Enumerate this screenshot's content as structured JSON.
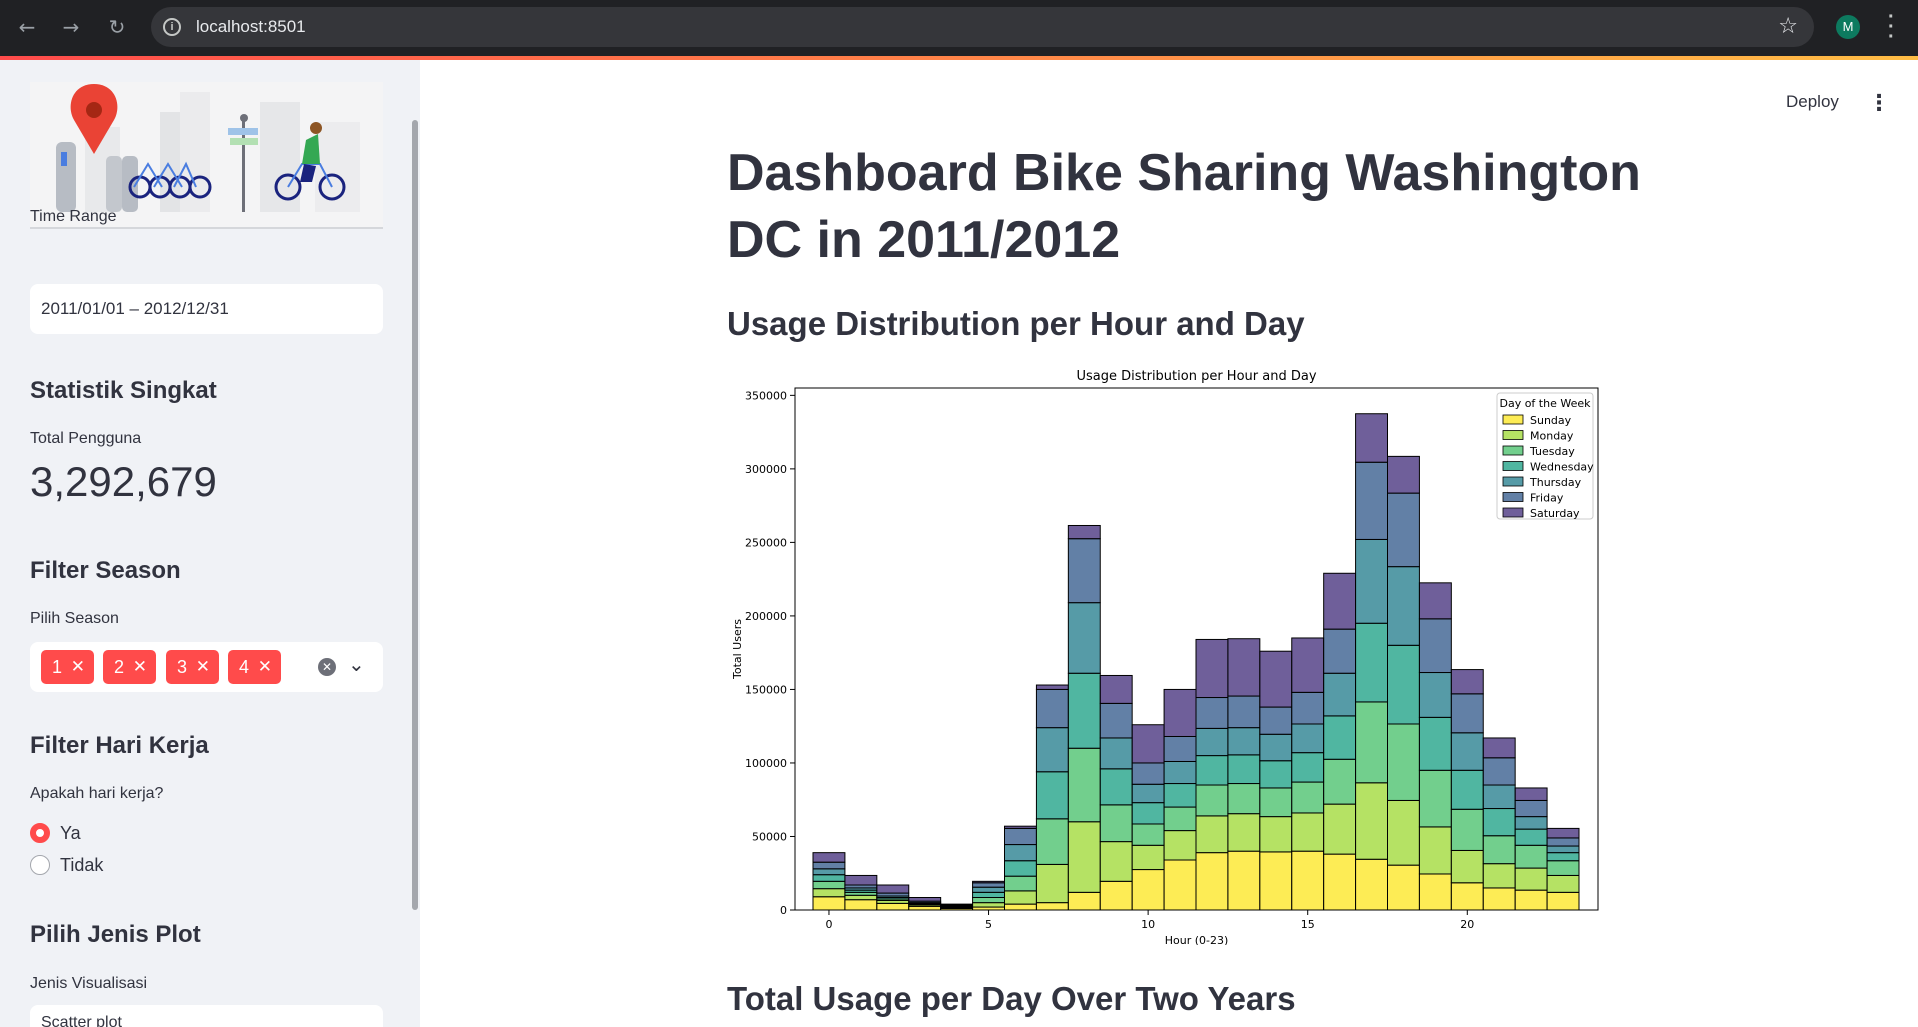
{
  "browser": {
    "url": "localhost:8501",
    "profile_initial": "M"
  },
  "sidebar": {
    "time_range_label": "Time Range",
    "time_range_value": "2011/01/01 – 2012/12/31",
    "stats_header": "Statistik Singkat",
    "total_users_label": "Total Pengguna",
    "total_users_value": "3,292,679",
    "season_header": "Filter Season",
    "season_label": "Pilih Season",
    "season_chips": [
      "1",
      "2",
      "3",
      "4"
    ],
    "workday_header": "Filter Hari Kerja",
    "workday_label": "Apakah hari kerja?",
    "workday_options": [
      "Ya",
      "Tidak"
    ],
    "workday_selected": "Ya",
    "plot_header": "Pilih Jenis Plot",
    "plot_label": "Jenis Visualisasi",
    "plot_value": "Scatter plot"
  },
  "main": {
    "deploy_label": "Deploy",
    "title": "Dashboard Bike Sharing Washington DC in 2011/2012",
    "section1": "Usage Distribution per Hour and Day",
    "section2": "Total Usage per Day Over Two Years"
  },
  "chart_data": {
    "type": "bar",
    "stacked": true,
    "title": "Usage Distribution per Hour and Day",
    "xlabel": "Hour (0-23)",
    "ylabel": "Total Users",
    "xticks": [
      0,
      5,
      10,
      15,
      20
    ],
    "yticks": [
      0,
      50000,
      100000,
      150000,
      200000,
      250000,
      300000,
      350000
    ],
    "ylim": [
      0,
      355000
    ],
    "legend_title": "Day of the Week",
    "legend_position": "top-right",
    "categories": [
      0,
      1,
      2,
      3,
      4,
      5,
      6,
      7,
      8,
      9,
      10,
      11,
      12,
      13,
      14,
      15,
      16,
      17,
      18,
      19,
      20,
      21,
      22,
      23
    ],
    "series": [
      {
        "name": "Sunday",
        "color": "#fde725",
        "values": [
          9000,
          7000,
          4500,
          2500,
          1000,
          2000,
          4000,
          5000,
          12000,
          19500,
          27500,
          34000,
          39000,
          40000,
          39500,
          40000,
          38000,
          34500,
          30500,
          24500,
          18500,
          15000,
          13500,
          12000
        ]
      },
      {
        "name": "Monday",
        "color": "#a0da39",
        "values": [
          5500,
          3000,
          2000,
          1000,
          500,
          3000,
          9000,
          26000,
          48000,
          27000,
          16500,
          20000,
          25000,
          25500,
          24000,
          26000,
          34000,
          52000,
          44000,
          32000,
          22000,
          16500,
          15000,
          11500
        ]
      },
      {
        "name": "Tuesday",
        "color": "#4ac16d",
        "values": [
          5000,
          2000,
          1000,
          500,
          500,
          3500,
          10000,
          31000,
          50000,
          25000,
          14500,
          16000,
          21000,
          20500,
          19500,
          21000,
          30500,
          55000,
          52000,
          38500,
          28000,
          19000,
          15500,
          10000
        ]
      },
      {
        "name": "Wednesday",
        "color": "#1fa187",
        "values": [
          4500,
          1500,
          1000,
          500,
          500,
          3500,
          10500,
          32000,
          51000,
          24500,
          14500,
          16000,
          20000,
          19500,
          18500,
          20000,
          29500,
          53500,
          53500,
          36000,
          26500,
          18500,
          11000,
          5500
        ]
      },
      {
        "name": "Thursday",
        "color": "#277f8e",
        "values": [
          4000,
          1500,
          1000,
          500,
          500,
          3500,
          11000,
          30000,
          48000,
          21000,
          12500,
          15000,
          18500,
          18500,
          18000,
          19500,
          29000,
          57000,
          53500,
          30500,
          25500,
          16000,
          8500,
          4500
        ]
      },
      {
        "name": "Friday",
        "color": "#365c8d",
        "values": [
          4500,
          2000,
          2000,
          1000,
          500,
          3000,
          11000,
          26000,
          43500,
          23500,
          14500,
          17000,
          21000,
          21500,
          18500,
          21500,
          30000,
          52500,
          50000,
          36500,
          26500,
          18500,
          11000,
          5500
        ]
      },
      {
        "name": "Saturday",
        "color": "#46327e",
        "values": [
          6500,
          6500,
          5500,
          2500,
          500,
          1000,
          1500,
          3000,
          9000,
          19000,
          26000,
          32000,
          39500,
          39000,
          38000,
          37000,
          38000,
          33000,
          25000,
          24500,
          16500,
          13500,
          8500,
          6500
        ]
      }
    ]
  }
}
